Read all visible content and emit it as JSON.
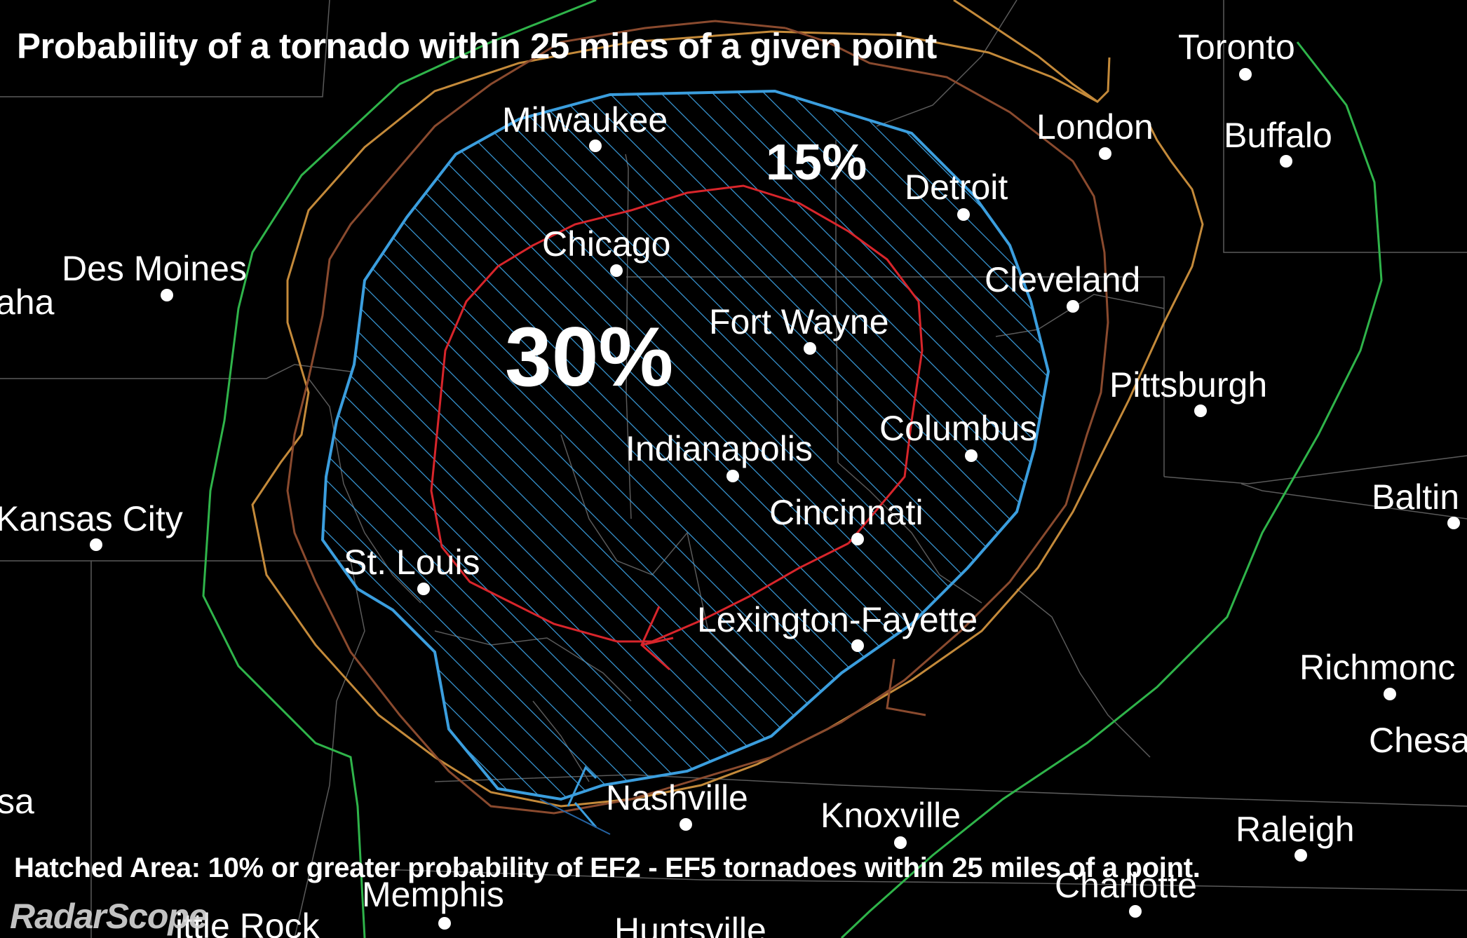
{
  "title": "Probability of a tornado within 25 miles of a given point",
  "footnote": "Hatched Area: 10% or greater probability of EF2 - EF5 tornadoes within 25 miles of a point.",
  "brand": "RadarScope",
  "probability_labels": {
    "inner": "30%",
    "outer": "15%"
  },
  "cities": [
    {
      "name": "Toronto"
    },
    {
      "name": "London"
    },
    {
      "name": "Buffalo"
    },
    {
      "name": "Milwaukee"
    },
    {
      "name": "Detroit"
    },
    {
      "name": "Chicago"
    },
    {
      "name": "Des Moines"
    },
    {
      "name": "aha"
    },
    {
      "name": "Cleveland"
    },
    {
      "name": "Fort Wayne"
    },
    {
      "name": "Pittsburgh"
    },
    {
      "name": "Columbus"
    },
    {
      "name": "Indianapolis"
    },
    {
      "name": "Cincinnati"
    },
    {
      "name": "Kansas City"
    },
    {
      "name": "Baltin"
    },
    {
      "name": "St. Louis"
    },
    {
      "name": "Lexington-Fayette"
    },
    {
      "name": "Richmonc"
    },
    {
      "name": "Chesa"
    },
    {
      "name": "Nashville"
    },
    {
      "name": "Knoxville"
    },
    {
      "name": "Raleigh"
    },
    {
      "name": "sa"
    },
    {
      "name": "Memphis"
    },
    {
      "name": "Charlotte"
    },
    {
      "name": "ittle Rock"
    },
    {
      "name": "Huntsville"
    }
  ],
  "contours": [
    {
      "level": "2%",
      "color": "#2fb44a"
    },
    {
      "level": "5%",
      "color": "#c48a3a"
    },
    {
      "level": "10%",
      "color": "#8a4a2e"
    },
    {
      "level": "15%",
      "color": "#3b9ede"
    },
    {
      "level": "30%",
      "color": "#d8252b"
    }
  ],
  "hatch_color": "#3b9ede",
  "border_color": "#5a5a5a"
}
